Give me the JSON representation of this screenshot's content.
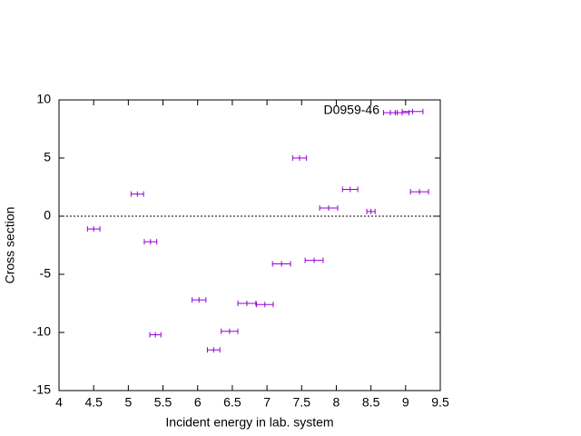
{
  "chart_data": {
    "type": "errorbar",
    "xlabel": "Incident energy in lab. system",
    "ylabel": "Cross section",
    "series": [
      {
        "name": "D0959-46",
        "color": "#9400d3",
        "x": [
          4.5,
          5.13,
          5.32,
          5.39,
          6.02,
          6.23,
          6.46,
          6.71,
          6.97,
          7.21,
          7.47,
          7.68,
          7.89,
          8.2,
          8.5,
          8.78,
          8.95,
          9.1,
          9.2
        ],
        "xerr": [
          0.09,
          0.09,
          0.09,
          0.08,
          0.1,
          0.09,
          0.12,
          0.13,
          0.12,
          0.13,
          0.1,
          0.13,
          0.13,
          0.11,
          0.06,
          0.1,
          0.1,
          0.15,
          0.13
        ],
        "values": [
          -1.1,
          1.9,
          -2.2,
          -10.2,
          -7.2,
          -11.5,
          -9.9,
          -7.5,
          -7.6,
          -4.1,
          5.0,
          -3.8,
          0.7,
          2.3,
          0.4,
          8.9,
          8.9,
          9.0,
          2.1
        ]
      }
    ],
    "xlim": [
      4,
      9.5
    ],
    "xticks": [
      4,
      4.5,
      5,
      5.5,
      6,
      6.5,
      7,
      7.5,
      8,
      8.5,
      9,
      9.5
    ],
    "ylim": [
      -15,
      10
    ],
    "yticks": [
      -15,
      -10,
      -5,
      0,
      5,
      10
    ],
    "zeroaxis": true,
    "legend": "top-right"
  }
}
